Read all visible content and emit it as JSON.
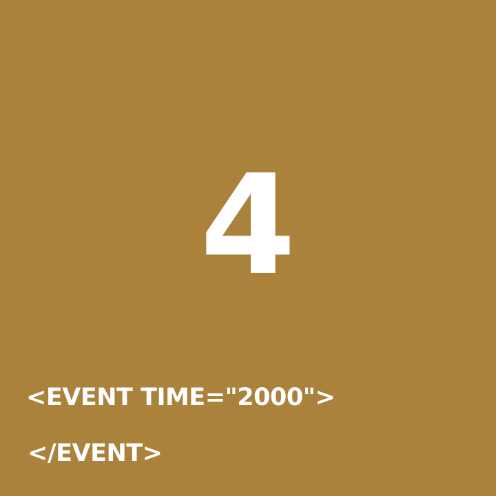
{
  "colors": {
    "background": "#AA823C",
    "text": "#FFFFFF"
  },
  "display": {
    "number": "4"
  },
  "code": {
    "open_tag": "<EVENT TIME=\"2000\">",
    "close_tag": "</EVENT>"
  }
}
